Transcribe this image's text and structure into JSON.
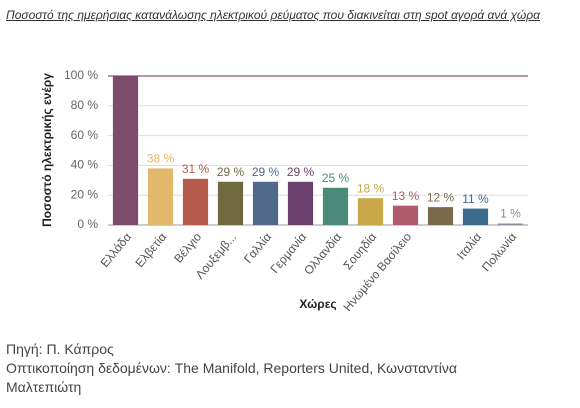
{
  "chart_data": {
    "type": "bar",
    "title": "Ποσοστό της ημερήσιας κατανάλωσης ηλεκτρικού ρεύματος που διακινείται στη spot αγορά ανά χώρα",
    "y_label": "Ποσοστό ηλεκτρικής ενέργ",
    "x_label": "Χώρες",
    "categories": [
      "Ελλάδα",
      "Ελβετία",
      "Βέλγιο",
      "Λουξεμβ...",
      "Γαλλία",
      "Γερμανία",
      "Ολλανδία",
      "Σουηδία",
      "Ηνωμένο Βασίλειο",
      null,
      "Ιταλία",
      "Πολωνία"
    ],
    "values": [
      100,
      38,
      31,
      29,
      29,
      29,
      25,
      18,
      13,
      12,
      11,
      1
    ],
    "value_labels": [
      null,
      "38 %",
      "31 %",
      "29 %",
      "29 %",
      "29 %",
      "25 %",
      "18 %",
      "13 %",
      "12 %",
      "11 %",
      "1 %"
    ],
    "colors": [
      "#7d4c6c",
      "#e2b96b",
      "#b75a4e",
      "#6e6a3d",
      "#50698a",
      "#6b3f6b",
      "#4b8a7a",
      "#c9a84a",
      "#b05a6b",
      "#7a6a4b",
      "#3c6b8b",
      "#8c8c9c"
    ],
    "ylim": [
      0,
      100
    ],
    "yticks": [
      {
        "value": 0,
        "label": "0 %"
      },
      {
        "value": 20,
        "label": "20 %"
      },
      {
        "value": 40,
        "label": "40 %"
      },
      {
        "value": 60,
        "label": "60 %"
      },
      {
        "value": 80,
        "label": "80 %"
      },
      {
        "value": 100,
        "label": "100 %"
      }
    ],
    "grid": true,
    "reference_line": {
      "value": 100,
      "color": "#a77282"
    },
    "source": [
      "Πηγή: Π. Κάπρος",
      "Οπτικοποίηση δεδομένων: The Manifold, Reporters United, Κωνσταντίνα Μαλτεπιώτη"
    ]
  }
}
